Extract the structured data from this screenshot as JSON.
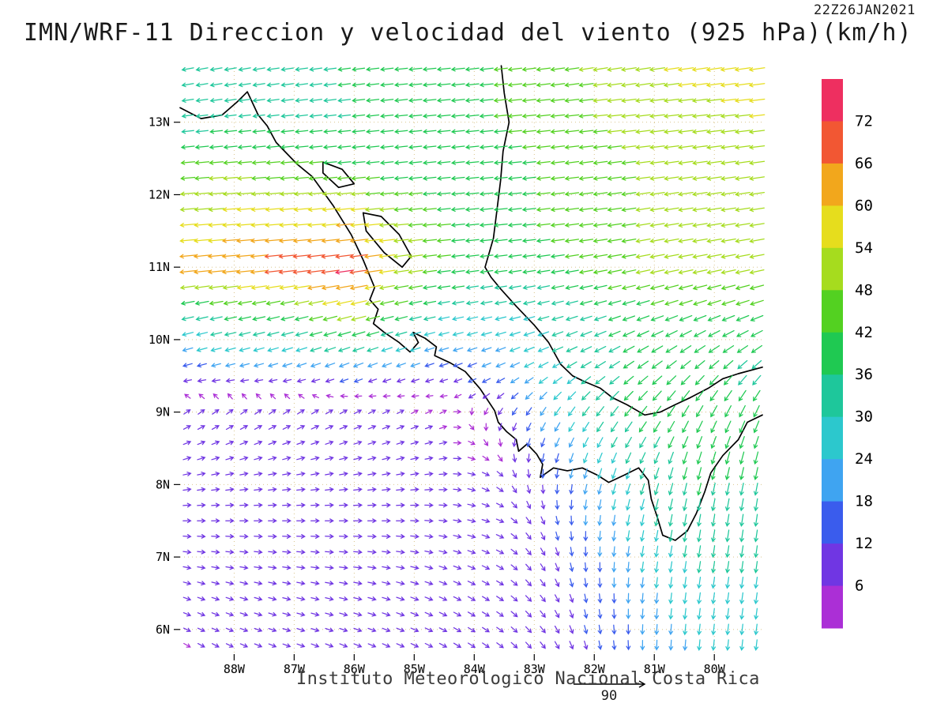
{
  "meta": {
    "title": "IMN/WRF-11 Direccion y velocidad del viento (925 hPa)(km/h)",
    "date_label": "22Z26JAN2021",
    "footer": "Instituto Meteorologico Nacional Costa Rica",
    "ref_vector_label": "90",
    "units": "km/h",
    "pressure_level": "925 hPa"
  },
  "axes": {
    "lat_tick_labels": [
      "13N",
      "12N",
      "11N",
      "10N",
      "9N",
      "8N",
      "7N",
      "6N"
    ],
    "lat_tick_values": [
      13,
      12,
      11,
      10,
      9,
      8,
      7,
      6
    ],
    "lon_tick_labels": [
      "88W",
      "87W",
      "86W",
      "85W",
      "84W",
      "83W",
      "82W",
      "81W",
      "80W"
    ],
    "lon_tick_values": [
      -88,
      -87,
      -86,
      -85,
      -84,
      -83,
      -82,
      -81,
      -80
    ],
    "lat_range": [
      5.66,
      13.76
    ],
    "lon_range": [
      -88.9,
      -79.2
    ],
    "grid_on": true
  },
  "colorbar": {
    "tick_labels": [
      "72",
      "66",
      "60",
      "54",
      "48",
      "42",
      "36",
      "30",
      "24",
      "18",
      "12",
      "6"
    ],
    "levels": [
      6,
      12,
      18,
      24,
      30,
      36,
      42,
      48,
      54,
      60,
      66,
      72
    ],
    "colors": [
      "#ab2fd6",
      "#7036e3",
      "#3a5ced",
      "#3fa4f1",
      "#2cc8cd",
      "#1ec79b",
      "#1fc952",
      "#53d121",
      "#a6dc1e",
      "#e6dd1d",
      "#f2a71c",
      "#f25733",
      "#ee2f60"
    ]
  },
  "chart_data": {
    "type": "vector_field",
    "title": "IMN/WRF-11 Direccion y velocidad del viento (925 hPa)(km/h)",
    "units": "km/h",
    "valid_time": "22Z26JAN2021",
    "lat_range": [
      5.66,
      13.76
    ],
    "lon_range": [
      -88.9,
      -79.2
    ],
    "speed_levels": [
      6,
      12,
      18,
      24,
      30,
      36,
      42,
      48,
      54,
      60,
      66,
      72
    ],
    "grid": {
      "lats": [
        5.7,
        6.5,
        7.5,
        8.25,
        9.0,
        9.75,
        10.4,
        11.0,
        11.6,
        12.4,
        13.1,
        13.8
      ],
      "lons": [
        -88.9,
        -88.0,
        -87.0,
        -86.0,
        -85.3,
        -84.5,
        -83.6,
        -82.8,
        -82.0,
        -81.2,
        -80.4,
        -79.2
      ],
      "u": [
        [
          5,
          6,
          8,
          9,
          9,
          9,
          8,
          6,
          3,
          0,
          -2,
          -3
        ],
        [
          6,
          7,
          9,
          10,
          10,
          9,
          8,
          6,
          2,
          -2,
          -4,
          -4
        ],
        [
          8,
          9,
          10,
          11,
          10,
          9,
          8,
          4,
          -2,
          -6,
          -6,
          -5
        ],
        [
          8,
          9,
          10,
          10,
          9,
          8,
          5,
          -2,
          -8,
          -12,
          -10,
          -8
        ],
        [
          6,
          7,
          8,
          8,
          6,
          4,
          -4,
          -12,
          -20,
          -24,
          -20,
          -16
        ],
        [
          -20,
          -22,
          -24,
          -26,
          -22,
          -18,
          -20,
          -26,
          -30,
          -32,
          -30,
          -28
        ],
        [
          -35,
          -38,
          -42,
          -56,
          -40,
          -30,
          -28,
          -30,
          -34,
          -38,
          -40,
          -40
        ],
        [
          -62,
          -66,
          -70,
          -74,
          -55,
          -42,
          -38,
          -40,
          -44,
          -48,
          -50,
          -48
        ],
        [
          -55,
          -57,
          -58,
          -60,
          -50,
          -42,
          -40,
          -42,
          -45,
          -48,
          -50,
          -50
        ],
        [
          -45,
          -46,
          -44,
          -40,
          -38,
          -38,
          -40,
          -42,
          -45,
          -48,
          -50,
          -52
        ],
        [
          -30,
          -32,
          -34,
          -36,
          -38,
          -40,
          -42,
          -45,
          -48,
          -50,
          -52,
          -54
        ],
        [
          -32,
          -33,
          -35,
          -36,
          -38,
          -40,
          -42,
          -45,
          -48,
          -52,
          -55,
          -56
        ]
      ],
      "v": [
        [
          -3,
          -3,
          -3,
          -4,
          -4,
          -5,
          -6,
          -8,
          -12,
          -18,
          -24,
          -24
        ],
        [
          -2,
          -2,
          -2,
          -2,
          -3,
          -4,
          -5,
          -8,
          -14,
          -22,
          -28,
          -28
        ],
        [
          0,
          0,
          0,
          0,
          0,
          -1,
          -3,
          -10,
          -20,
          -28,
          -34,
          -34
        ],
        [
          2,
          2,
          2,
          2,
          2,
          1,
          -4,
          -14,
          -24,
          -30,
          -36,
          -36
        ],
        [
          4,
          5,
          5,
          4,
          3,
          2,
          -6,
          -18,
          -26,
          -30,
          -34,
          -34
        ],
        [
          -6,
          -6,
          -8,
          -10,
          -8,
          -6,
          -8,
          -12,
          -16,
          -20,
          -22,
          -22
        ],
        [
          -8,
          -8,
          -10,
          -14,
          -10,
          -6,
          -6,
          -8,
          -10,
          -12,
          -14,
          -14
        ],
        [
          -6,
          -6,
          -8,
          -10,
          -8,
          -5,
          -5,
          -6,
          -8,
          -10,
          -10,
          -10
        ],
        [
          -5,
          -5,
          -5,
          -6,
          -5,
          -4,
          -4,
          -5,
          -6,
          -8,
          -8,
          -8
        ],
        [
          -4,
          -4,
          -4,
          -4,
          -4,
          -4,
          -4,
          -5,
          -6,
          -6,
          -7,
          -7
        ],
        [
          -4,
          -4,
          -4,
          -4,
          -4,
          -4,
          -4,
          -5,
          -5,
          -6,
          -6,
          -6
        ],
        [
          -6,
          -6,
          -5,
          -5,
          -4,
          -4,
          -5,
          -6,
          -8,
          -8,
          -8,
          -8
        ]
      ]
    },
    "reference_vector": {
      "label": "90",
      "value": 90
    }
  },
  "map": {
    "coastlines": [
      {
        "name": "pacific-coast",
        "points": [
          [
            -88.9,
            13.2
          ],
          [
            -88.55,
            13.05
          ],
          [
            -88.2,
            13.1
          ],
          [
            -87.95,
            13.28
          ],
          [
            -87.78,
            13.42
          ],
          [
            -87.6,
            13.1
          ],
          [
            -87.45,
            12.95
          ],
          [
            -87.3,
            12.72
          ],
          [
            -86.95,
            12.42
          ],
          [
            -86.7,
            12.25
          ],
          [
            -86.35,
            11.85
          ],
          [
            -86.05,
            11.45
          ],
          [
            -85.85,
            11.1
          ],
          [
            -85.66,
            10.72
          ],
          [
            -85.74,
            10.55
          ],
          [
            -85.6,
            10.42
          ],
          [
            -85.68,
            10.22
          ],
          [
            -85.5,
            10.1
          ],
          [
            -85.25,
            9.96
          ],
          [
            -85.07,
            9.83
          ],
          [
            -84.93,
            9.96
          ],
          [
            -85.02,
            10.1
          ],
          [
            -84.82,
            10.02
          ],
          [
            -84.63,
            9.9
          ],
          [
            -84.66,
            9.78
          ],
          [
            -84.4,
            9.68
          ],
          [
            -84.15,
            9.56
          ],
          [
            -83.9,
            9.32
          ],
          [
            -83.66,
            9.02
          ],
          [
            -83.6,
            8.86
          ],
          [
            -83.46,
            8.73
          ],
          [
            -83.3,
            8.62
          ],
          [
            -83.26,
            8.46
          ],
          [
            -83.12,
            8.56
          ],
          [
            -82.96,
            8.42
          ],
          [
            -82.86,
            8.28
          ],
          [
            -82.9,
            8.1
          ],
          [
            -82.68,
            8.23
          ],
          [
            -82.45,
            8.19
          ],
          [
            -82.2,
            8.23
          ],
          [
            -81.95,
            8.13
          ],
          [
            -81.76,
            8.03
          ],
          [
            -81.5,
            8.13
          ],
          [
            -81.26,
            8.23
          ],
          [
            -81.1,
            8.06
          ],
          [
            -81.05,
            7.8
          ],
          [
            -80.95,
            7.55
          ],
          [
            -80.86,
            7.3
          ],
          [
            -80.65,
            7.23
          ],
          [
            -80.45,
            7.36
          ],
          [
            -80.3,
            7.6
          ],
          [
            -80.16,
            7.9
          ],
          [
            -80.06,
            8.16
          ],
          [
            -79.86,
            8.4
          ],
          [
            -79.6,
            8.62
          ],
          [
            -79.45,
            8.86
          ],
          [
            -79.2,
            8.96
          ]
        ]
      },
      {
        "name": "caribbean-coast",
        "points": [
          [
            -83.55,
            13.78
          ],
          [
            -83.5,
            13.4
          ],
          [
            -83.42,
            13.0
          ],
          [
            -83.52,
            12.6
          ],
          [
            -83.56,
            12.2
          ],
          [
            -83.62,
            11.8
          ],
          [
            -83.68,
            11.4
          ],
          [
            -83.82,
            11.0
          ],
          [
            -83.72,
            10.86
          ],
          [
            -83.56,
            10.7
          ],
          [
            -83.3,
            10.46
          ],
          [
            -83.0,
            10.2
          ],
          [
            -82.76,
            9.96
          ],
          [
            -82.56,
            9.66
          ],
          [
            -82.36,
            9.5
          ],
          [
            -82.16,
            9.42
          ],
          [
            -81.9,
            9.33
          ],
          [
            -81.7,
            9.2
          ],
          [
            -81.45,
            9.1
          ],
          [
            -81.16,
            8.96
          ],
          [
            -80.9,
            9.0
          ],
          [
            -80.66,
            9.1
          ],
          [
            -80.4,
            9.2
          ],
          [
            -80.1,
            9.33
          ],
          [
            -79.86,
            9.46
          ],
          [
            -79.6,
            9.53
          ],
          [
            -79.2,
            9.62
          ]
        ]
      },
      {
        "name": "lake-nicaragua",
        "points": [
          [
            -85.85,
            11.75
          ],
          [
            -85.55,
            11.7
          ],
          [
            -85.25,
            11.45
          ],
          [
            -85.05,
            11.15
          ],
          [
            -85.2,
            11.0
          ],
          [
            -85.5,
            11.2
          ],
          [
            -85.8,
            11.5
          ],
          [
            -85.85,
            11.75
          ]
        ]
      },
      {
        "name": "lake-managua",
        "points": [
          [
            -86.52,
            12.45
          ],
          [
            -86.2,
            12.35
          ],
          [
            -86.0,
            12.15
          ],
          [
            -86.26,
            12.1
          ],
          [
            -86.52,
            12.3
          ],
          [
            -86.52,
            12.45
          ]
        ]
      }
    ]
  }
}
